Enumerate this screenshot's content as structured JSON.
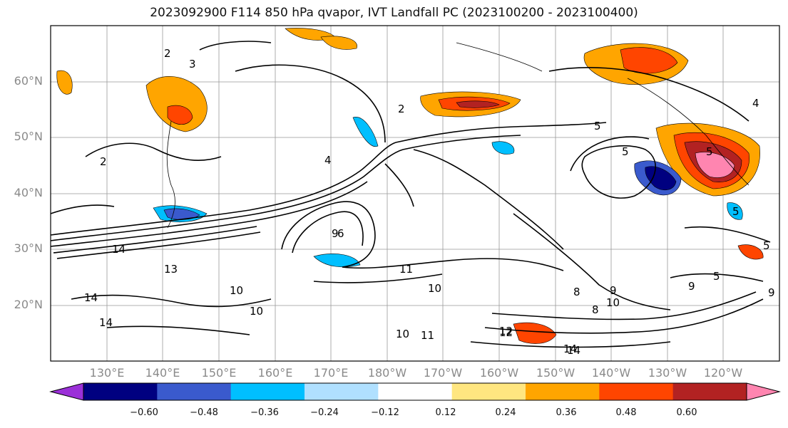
{
  "title": "2023092900 F114 850 hPa qvapor, IVT Landfall PC (2023100200 - 2023100400)",
  "lat_labels": [
    "60°N",
    "50°N",
    "40°N",
    "30°N",
    "20°N"
  ],
  "lon_labels": [
    "130°E",
    "140°E",
    "150°E",
    "160°E",
    "170°E",
    "180°W",
    "170°W",
    "160°W",
    "150°W",
    "140°W",
    "130°W",
    "120°W"
  ],
  "colorbar": {
    "ticks": [
      "−0.60",
      "−0.48",
      "−0.36",
      "−0.24",
      "−0.12",
      "0.12",
      "0.24",
      "0.36",
      "0.48",
      "0.60"
    ],
    "colors": [
      "#9b30d8",
      "#000080",
      "#3a5acd",
      "#00bfff",
      "#b0e0ff",
      "#ffffff",
      "#ffe680",
      "#ffa500",
      "#ff4500",
      "#b22222",
      "#ff85b0"
    ]
  },
  "contour_labels": [
    "2",
    "3",
    "2",
    "4",
    "5",
    "5",
    "4",
    "5",
    "5",
    "2",
    "9",
    "14",
    "14",
    "13",
    "10",
    "10",
    "14",
    "11",
    "10",
    "12",
    "14",
    "6",
    "8",
    "9",
    "10",
    "8",
    "5",
    "9",
    "9",
    "5",
    "10",
    "11",
    "12",
    "14"
  ]
}
